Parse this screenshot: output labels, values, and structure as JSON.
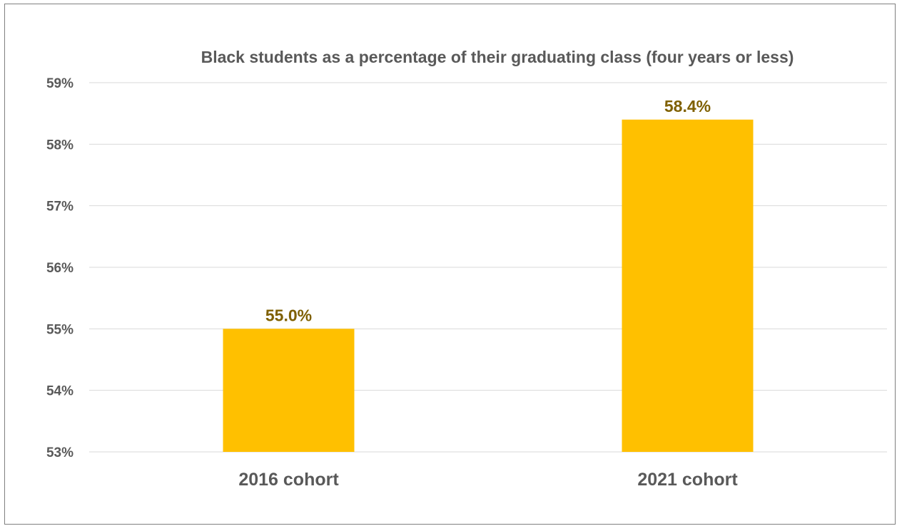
{
  "chart_data": {
    "type": "bar",
    "title": "Black students as a percentage of their graduating class (four years or less)",
    "xlabel": "",
    "ylabel": "",
    "categories": [
      "2016 cohort",
      "2021 cohort"
    ],
    "values": [
      55.0,
      58.4
    ],
    "data_labels": [
      "55.0%",
      "58.4%"
    ],
    "ylim": [
      53,
      59
    ],
    "y_ticks": [
      53,
      54,
      55,
      56,
      57,
      58,
      59
    ],
    "y_tick_labels": [
      "53%",
      "54%",
      "55%",
      "56%",
      "57%",
      "58%",
      "59%"
    ],
    "grid": true,
    "legend": "none",
    "colors": {
      "bar": "#ffc000",
      "data_label": "#7f6000",
      "text": "#595959",
      "gridline": "#d9d9d9",
      "border": "#7f7f7f"
    }
  }
}
